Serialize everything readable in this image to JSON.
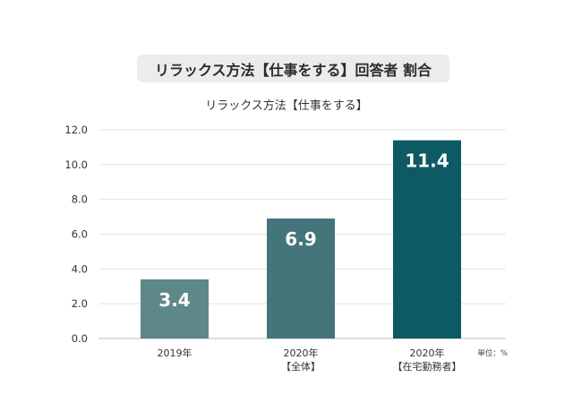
{
  "header": {
    "title": "リラックス方法【仕事をする】回答者 割合"
  },
  "chart_data": {
    "type": "bar",
    "title": "リラックス方法【仕事をする】",
    "categories": [
      [
        "2019年"
      ],
      [
        "2020年",
        "【全体】"
      ],
      [
        "2020年",
        "【在宅勤務者】"
      ]
    ],
    "values": [
      3.4,
      6.9,
      11.4
    ],
    "value_labels": [
      "3.4",
      "6.9",
      "11.4"
    ],
    "bar_colors": [
      "#5e878a",
      "#43757a",
      "#0d5a64"
    ],
    "ylim": [
      0,
      12
    ],
    "yticks": [
      "0.0",
      "2.0",
      "4.0",
      "6.0",
      "8.0",
      "10.0",
      "12.0"
    ],
    "grid": true,
    "unit_label": "単位：%"
  }
}
